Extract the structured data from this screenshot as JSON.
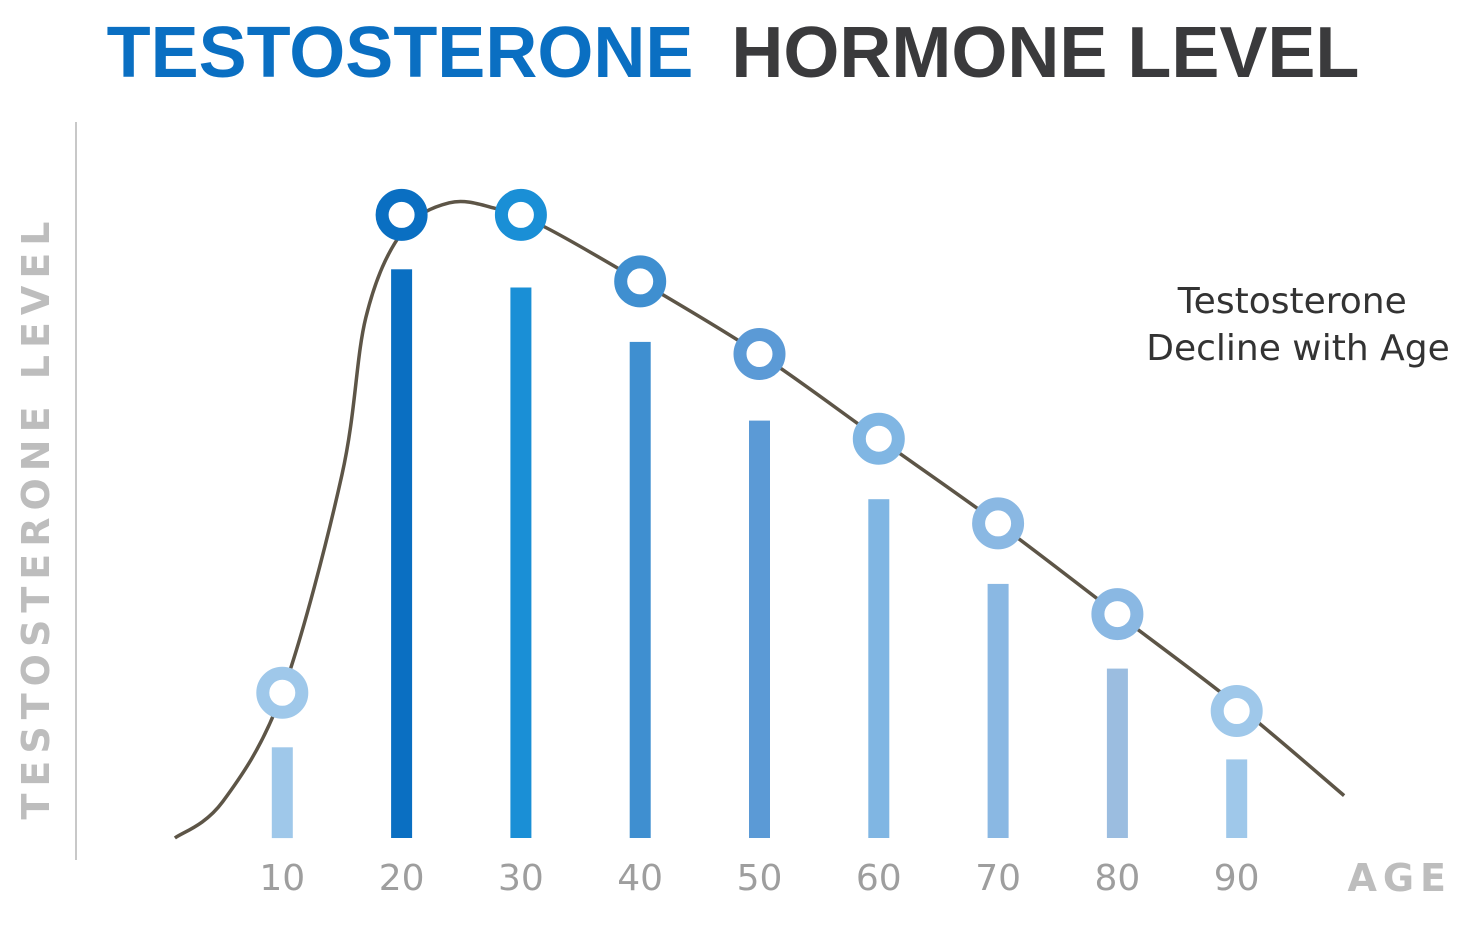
{
  "title": {
    "part1": "TESTOSTERONE",
    "part2": "HORMONE LEVEL"
  },
  "colors": {
    "title_part1": "#0a6fc2",
    "title_part2": "#3a3a3c",
    "axis_label": "#bdbdbd",
    "tick_label": "#9e9e9e",
    "axis_line": "#c8c8c8",
    "curve": "#5d5547",
    "annotation": "#333333"
  },
  "chart_data": {
    "type": "bar",
    "title": "TESTOSTERONE HORMONE LEVEL",
    "xlabel": "AGE",
    "ylabel": "TESTOSTERONE LEVEL",
    "categories": [
      "10",
      "20",
      "30",
      "40",
      "50",
      "60",
      "70",
      "80",
      "90"
    ],
    "x": [
      10,
      20,
      30,
      40,
      50,
      60,
      70,
      80,
      90
    ],
    "series": [
      {
        "values": [
          15,
          94,
          91,
          82,
          69,
          56,
          42,
          28,
          13
        ]
      }
    ],
    "markers": [
      24,
      103,
      103,
      92,
      80,
      66,
      52,
      37,
      21
    ],
    "curve": {
      "x": [
        1,
        5,
        10,
        15,
        17,
        20,
        24,
        28,
        32,
        40,
        50,
        60,
        70,
        80,
        90,
        99
      ],
      "y": [
        0,
        6,
        24,
        60,
        86,
        100,
        105,
        104,
        101,
        92,
        80,
        66,
        52,
        37,
        22,
        7
      ]
    },
    "bar_colors": [
      "#9fc8ea",
      "#0a6fc2",
      "#1a8fd6",
      "#3f8fd0",
      "#5b9ad6",
      "#80b6e3",
      "#8ab8e3",
      "#9bbde0",
      "#9fc8ea"
    ],
    "ring_colors": [
      "#9fc8ea",
      "#0a6fc2",
      "#1a8fd6",
      "#3f8fd0",
      "#5b9ad6",
      "#80b6e3",
      "#8ab8e3",
      "#8ab8e3",
      "#9fc8ea"
    ],
    "annotations": [
      "Testosterone",
      "Decline with Age"
    ],
    "xlim": [
      0,
      100
    ],
    "ylim": [
      0,
      120
    ],
    "grid": false,
    "legend": "none"
  }
}
